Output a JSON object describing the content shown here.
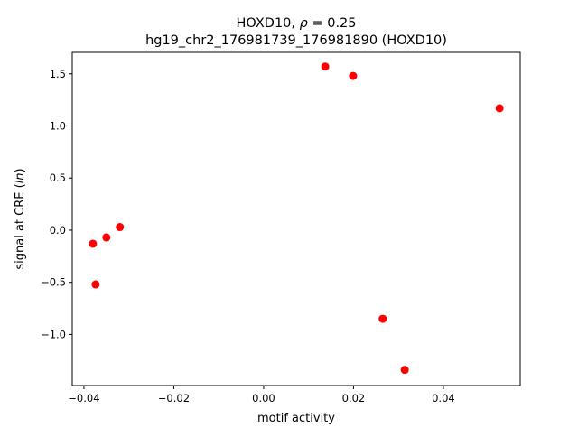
{
  "chart_data": {
    "type": "scatter",
    "title_line1_prefix": "HOXD10, ",
    "title_line1_rho": "ρ",
    "title_line1_suffix": " = 0.25",
    "title_line2": "hg19_chr2_176981739_176981890 (HOXD10)",
    "xlabel": "motif activity",
    "ylabel_prefix": "signal at CRE (",
    "ylabel_italic": "ln",
    "ylabel_suffix": ")",
    "xlim": [
      -0.0426,
      0.0571
    ],
    "ylim": [
      -1.49,
      1.706
    ],
    "xticks": [
      -0.04,
      -0.02,
      0.0,
      0.02,
      0.04
    ],
    "xtick_labels": [
      "−0.04",
      "−0.02",
      "0.00",
      "0.02",
      "0.04"
    ],
    "yticks": [
      -1.0,
      -0.5,
      0.0,
      0.5,
      1.0,
      1.5
    ],
    "ytick_labels": [
      "−1.0",
      "−0.5",
      "0.0",
      "0.5",
      "1.0",
      "1.5"
    ],
    "grid": false,
    "marker_color": "#ff0000",
    "points": [
      {
        "x": -0.038,
        "y": -0.13
      },
      {
        "x": -0.0374,
        "y": -0.52
      },
      {
        "x": -0.035,
        "y": -0.07
      },
      {
        "x": -0.032,
        "y": 0.03
      },
      {
        "x": 0.0137,
        "y": 1.57
      },
      {
        "x": 0.0199,
        "y": 1.48
      },
      {
        "x": 0.0525,
        "y": 1.17
      },
      {
        "x": 0.0265,
        "y": -0.85
      },
      {
        "x": 0.0314,
        "y": -1.34
      }
    ]
  }
}
